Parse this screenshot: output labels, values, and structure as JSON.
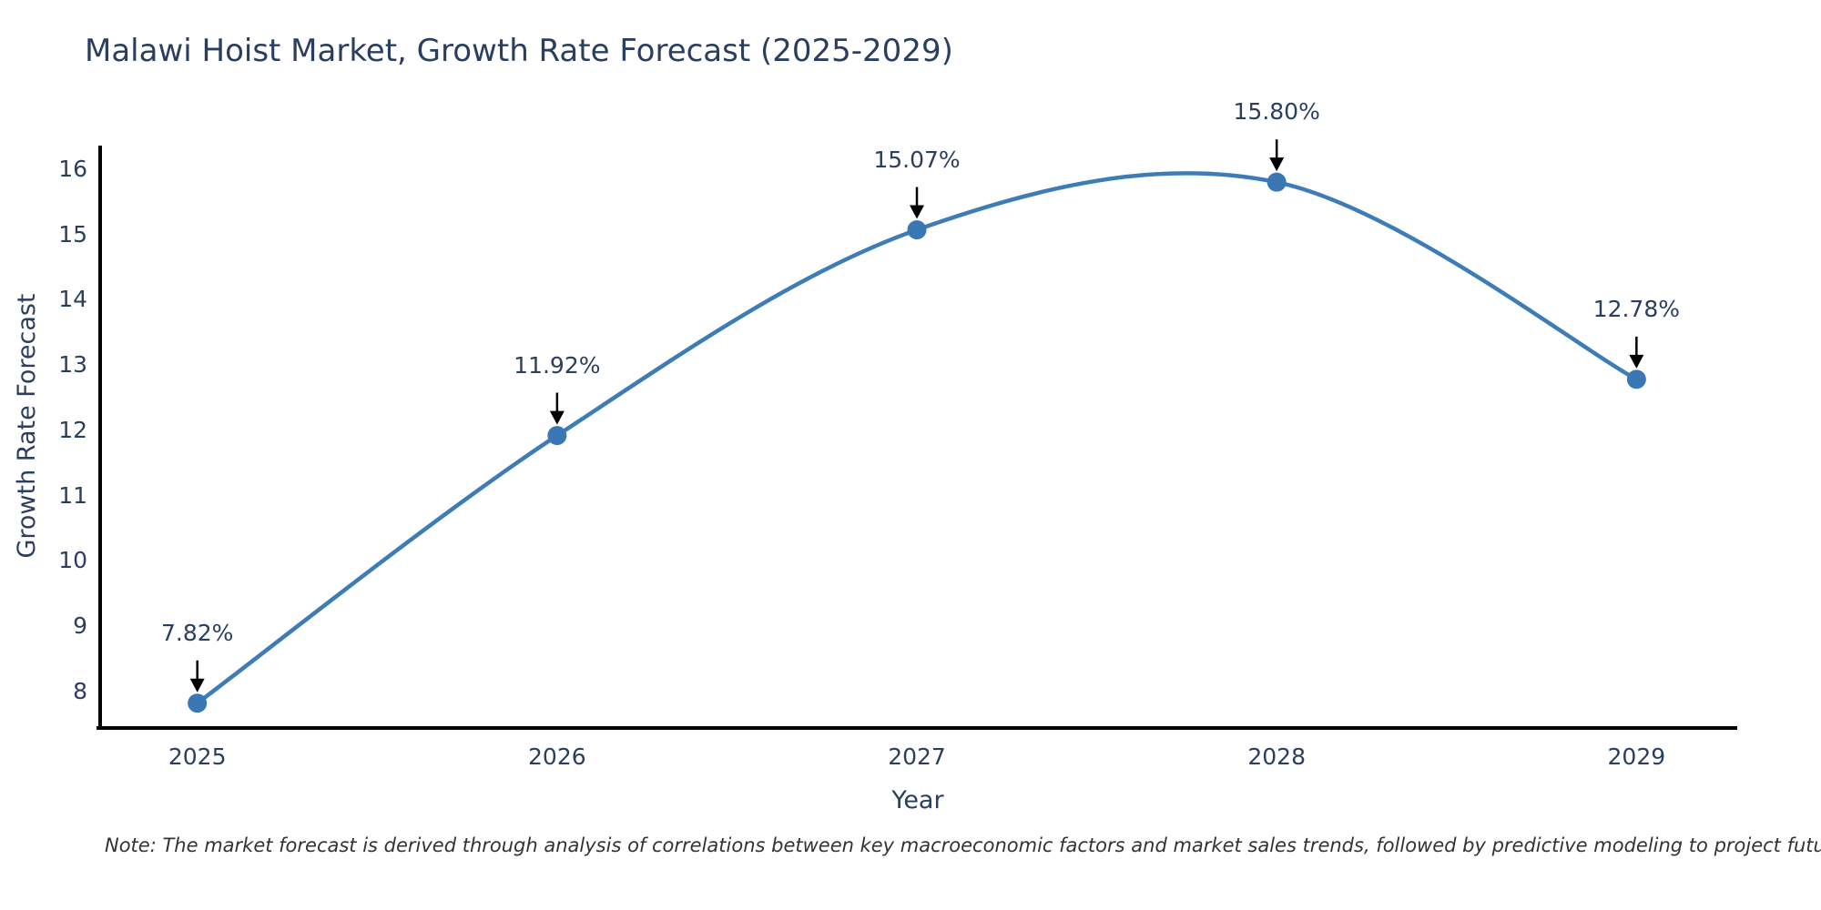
{
  "page": {
    "background": "#ffffff"
  },
  "chart_data": {
    "type": "line",
    "title": "Malawi Hoist Market, Growth Rate Forecast (2025-2029)",
    "xlabel": "Year",
    "ylabel": "Growth Rate Forecast",
    "x": [
      2025,
      2026,
      2027,
      2028,
      2029
    ],
    "x_tick_labels": [
      "2025",
      "2026",
      "2027",
      "2028",
      "2029"
    ],
    "series": [
      {
        "name": "Growth Rate Forecast",
        "values": [
          7.82,
          11.92,
          15.07,
          15.8,
          12.78
        ]
      }
    ],
    "point_labels": [
      "7.82%",
      "11.92%",
      "15.07%",
      "15.80%",
      "12.78%"
    ],
    "yticks": [
      8,
      9,
      10,
      11,
      12,
      13,
      14,
      15,
      16
    ],
    "ylim": [
      7.44,
      16.36
    ],
    "xlim": [
      2024.73,
      2029.28
    ],
    "curve": "spline",
    "grid": false,
    "legend": "none",
    "line_color": "#3e7cb8",
    "marker_color": "#3a78b5",
    "axis_color": "#000000",
    "text_color": "#2a3f5f",
    "arrow_color": "#000000",
    "note": "Note: The market forecast is derived through analysis of correlations between key macroeconomic factors and market sales trends, followed by predictive modeling to project future sales"
  }
}
